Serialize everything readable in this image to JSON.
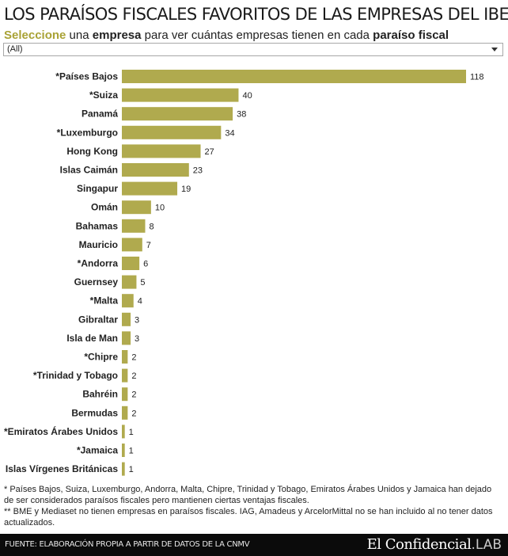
{
  "header": {
    "title": "LOS PARAÍSOS FISCALES FAVORITOS DE LAS EMPRESAS DEL IBEX",
    "subtitle_highlight": "Seleccione",
    "subtitle_part1": " una ",
    "subtitle_bold1": "empresa",
    "subtitle_part2": " para ver cuántas empresas tienen en cada ",
    "subtitle_bold2": "paraíso fiscal"
  },
  "filter": {
    "selected": "(All)",
    "icon": "chevron-down-icon"
  },
  "colors": {
    "bar": "#b0aa4e",
    "label": "#222222",
    "footer_bg": "#0b0b0b"
  },
  "chart_data": {
    "type": "bar",
    "orientation": "horizontal",
    "categories": [
      "*Países Bajos",
      "*Suiza",
      "Panamá",
      "*Luxemburgo",
      "Hong Kong",
      "Islas Caimán",
      "Singapur",
      "Omán",
      "Bahamas",
      "Mauricio",
      "*Andorra",
      "Guernsey",
      "*Malta",
      "Gibraltar",
      "Isla de Man",
      "*Chipre",
      "*Trinidad y Tobago",
      "Bahréin",
      "Bermudas",
      "*Emiratos Árabes Unidos",
      "*Jamaica",
      "Islas Vírgenes Británicas"
    ],
    "values": [
      118,
      40,
      38,
      34,
      27,
      23,
      19,
      10,
      8,
      7,
      6,
      5,
      4,
      3,
      3,
      2,
      2,
      2,
      2,
      1,
      1,
      1
    ],
    "xlim": [
      0,
      118
    ],
    "grid": false,
    "data_labels": true
  },
  "footnotes": {
    "note1": "* Países Bajos, Suiza, Luxemburgo, Andorra, Malta, Chipre, Trinidad y Tobago, Emiratos Árabes Unidos y Jamaica han dejado de ser considerados paraísos fiscales pero mantienen ciertas ventajas fiscales.",
    "note2": "** BME y Mediaset no tienen empresas en paraísos fiscales. IAG, Amadeus y ArcelorMittal no se han incluido al no tener datos actualizados."
  },
  "footer": {
    "source": "FUENTE: ELABORACIÓN PROPIA A PARTIR DE DATOS DE LA CNMV",
    "logo_main": "El Confidencial",
    "logo_suffix": ".LAB"
  }
}
